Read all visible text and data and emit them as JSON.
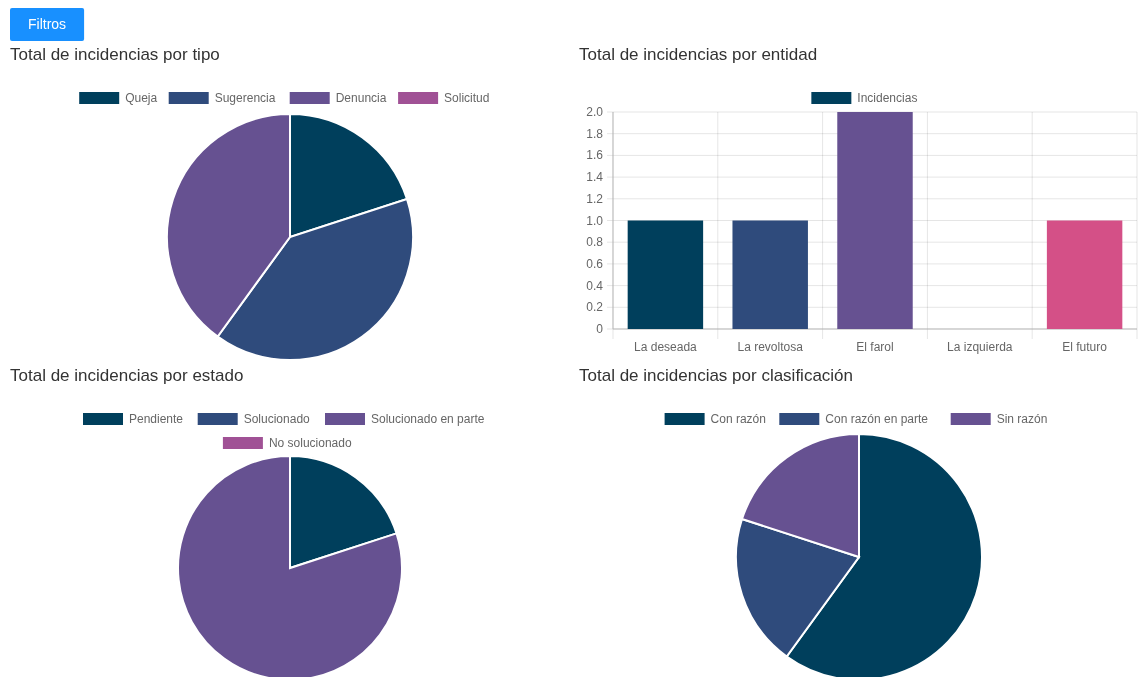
{
  "chart_data": [
    {
      "type": "other",
      "annotations": [
        "Filtros"
      ]
    },
    {
      "type": "pie",
      "title": "Total de incidencias por tipo",
      "categories": [
        "Queja",
        "Sugerencia",
        "Denuncia",
        "Solicitud"
      ],
      "values": [
        20,
        40,
        40,
        0
      ],
      "colors": [
        "#003f5c",
        "#2f4b7c",
        "#665191",
        "#a05195"
      ],
      "legend": "top"
    },
    {
      "type": "bar",
      "title": "Total de incidencias por entidad",
      "categories": [
        "La deseada",
        "La revoltosa",
        "El farol",
        "La izquierda",
        "El futuro"
      ],
      "series": [
        {
          "name": "Incidencias",
          "color": "#003f5c",
          "colors": [
            "#003f5c",
            "#2f4b7c",
            "#665191",
            "#a05195",
            "#d45087"
          ],
          "values": [
            1,
            1,
            2,
            0,
            1
          ]
        }
      ],
      "ylim": [
        0,
        2
      ],
      "yticks": [
        0,
        0.2,
        0.4,
        0.6,
        0.8,
        {
          "value": 1,
          "label": "1.0"
        },
        1.2,
        1.4,
        1.6,
        1.8,
        {
          "value": 2,
          "label": "2.0"
        }
      ],
      "grid": true,
      "legend": "top"
    },
    {
      "type": "pie",
      "title": "Total de incidencias por estado",
      "categories": [
        "Pendiente",
        "Solucionado",
        "Solucionado en parte",
        "No solucionado"
      ],
      "values": [
        20,
        0,
        80,
        0
      ],
      "colors": [
        "#003f5c",
        "#2f4b7c",
        "#665191",
        "#a05195"
      ],
      "legend": "top"
    },
    {
      "type": "pie",
      "title": "Total de incidencias por clasificación",
      "categories": [
        "Con razón",
        "Con razón en parte",
        "Sin razón"
      ],
      "values": [
        60,
        20,
        20
      ],
      "colors": [
        "#003f5c",
        "#2f4b7c",
        "#665191"
      ],
      "legend": "top"
    }
  ]
}
